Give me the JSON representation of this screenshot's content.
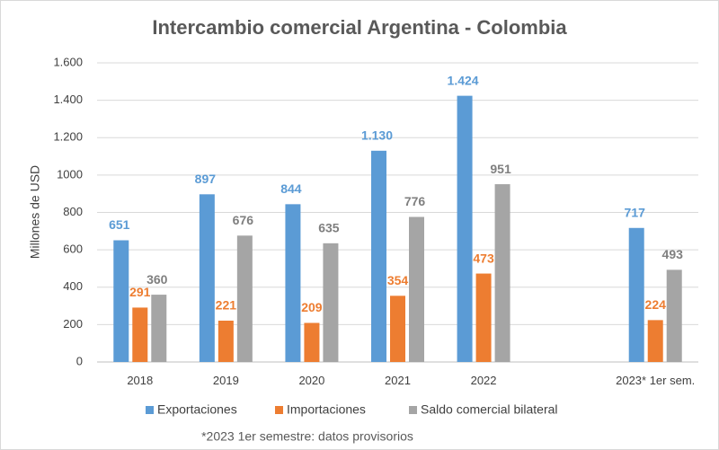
{
  "chart_data": {
    "type": "bar",
    "title": "Intercambio comercial Argentina - Colombia",
    "y_label": "Millones de USD",
    "footnote": "*2023 1er semestre: datos provisorios",
    "categories": [
      "2018",
      "2019",
      "2020",
      "2021",
      "2022",
      null,
      "2023* 1er sem."
    ],
    "series": [
      {
        "name": "Exportaciones",
        "color": "#5b9bd5",
        "values": [
          651,
          897,
          844,
          1130,
          1424,
          null,
          717
        ],
        "value_labels": [
          "651",
          "897",
          "844",
          "1.130",
          "1.424",
          null,
          "717"
        ]
      },
      {
        "name": "Importaciones",
        "color": "#ed7d31",
        "values": [
          291,
          221,
          209,
          354,
          473,
          null,
          224
        ]
      },
      {
        "name": "Saldo comercial bilateral",
        "color": "#a5a5a5",
        "values": [
          360,
          676,
          635,
          776,
          951,
          null,
          493
        ]
      }
    ],
    "ylim": [
      0,
      1600
    ],
    "yticks": [
      0,
      200,
      400,
      600,
      800,
      1000,
      {
        "value": 1200,
        "label": "1.200"
      },
      {
        "value": 1400,
        "label": "1.400"
      },
      {
        "value": 1600,
        "label": "1.600"
      }
    ],
    "grid": true,
    "legend": "bottom"
  }
}
